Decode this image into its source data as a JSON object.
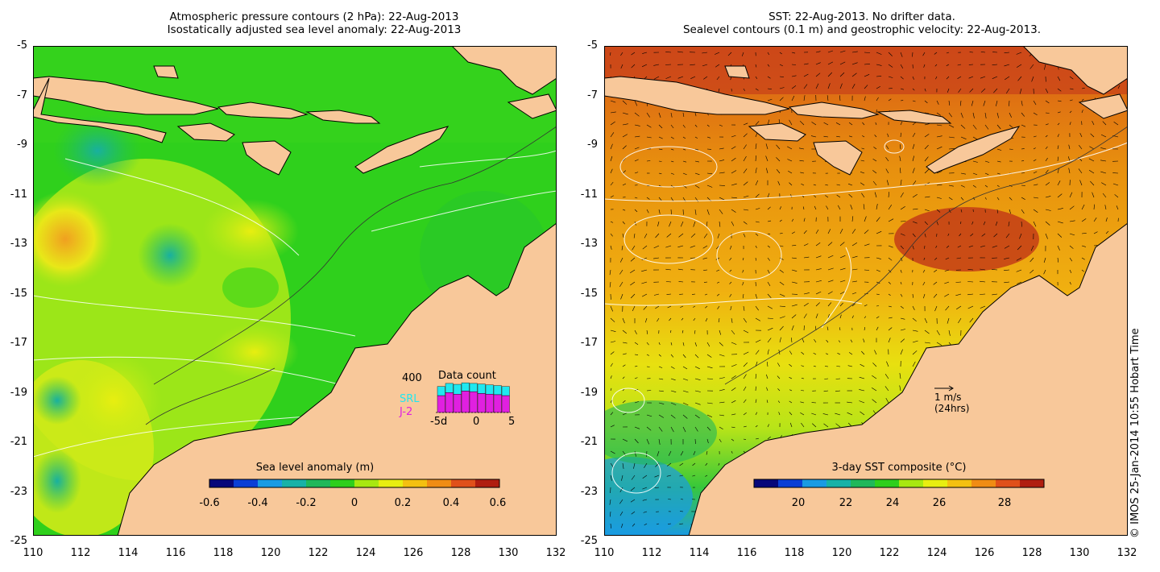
{
  "left_map": {
    "title_line1": "Atmospheric pressure contours (2 hPa): 22-Aug-2013",
    "title_line2": "Isostatically adjusted sea level anomaly: 22-Aug-2013",
    "colorbar": {
      "label": "Sea level anomaly (m)",
      "ticks": [
        "-0.6",
        "-0.4",
        "-0.2",
        "0",
        "0.2",
        "0.4",
        "0.6"
      ],
      "colors": [
        "#07077a",
        "#0b3fd6",
        "#1a9be3",
        "#18b2a7",
        "#20b85a",
        "#2fcf1c",
        "#a8e810",
        "#e8ee10",
        "#f4c010",
        "#f08c14",
        "#e0501a",
        "#b01e10"
      ]
    },
    "inset": {
      "title": "Data count",
      "y_max_label": "400",
      "series": [
        "SRL",
        "J-2"
      ],
      "series_colors": [
        "#20e8f0",
        "#e020e0"
      ],
      "x_labels": [
        "-5d",
        "0",
        "5"
      ]
    }
  },
  "right_map": {
    "title_line1": "SST: 22-Aug-2013. No drifter data.",
    "title_line2": "Sealevel contours (0.1 m) and geostrophic velocity: 22-Aug-2013.",
    "colorbar": {
      "label": "3-day SST composite (°C)",
      "ticks": [
        "20",
        "22",
        "24",
        "26",
        "28"
      ],
      "colors": [
        "#07077a",
        "#0b3fd6",
        "#1a9be3",
        "#18b2a7",
        "#20b85a",
        "#2fcf1c",
        "#a8e810",
        "#e8ee10",
        "#f4c010",
        "#f08c14",
        "#e0501a",
        "#b01e10"
      ]
    },
    "velocity_scale": {
      "line1": "1 m/s",
      "line2": "(24hrs)"
    }
  },
  "axes": {
    "y_ticks": [
      "-5",
      "-7",
      "-9",
      "-11",
      "-13",
      "-15",
      "-17",
      "-19",
      "-21",
      "-23",
      "-25"
    ],
    "x_ticks": [
      "110",
      "112",
      "114",
      "116",
      "118",
      "120",
      "122",
      "124",
      "126",
      "128",
      "130",
      "132"
    ]
  },
  "colors": {
    "land": "#f8c89a",
    "coast": "#000000",
    "contour": "#ffffff"
  },
  "credit": "© IMOS 25-Jan-2014 10:55 Hobart Time"
}
